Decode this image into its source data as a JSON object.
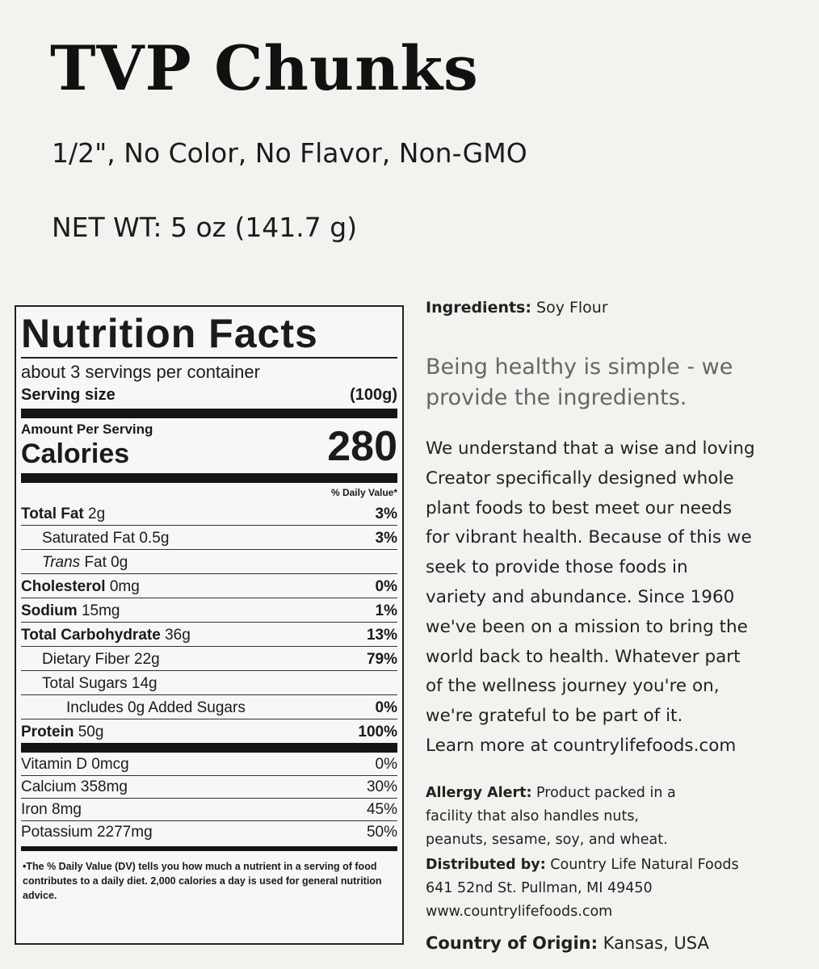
{
  "product": {
    "title": "TVP Chunks",
    "subtitle": "1/2\", No Color, No Flavor, Non-GMO",
    "net_wt": "NET WT: 5 oz (141.7 g)"
  },
  "nutrition": {
    "heading": "Nutrition Facts",
    "servings": "about 3 servings per container",
    "serving_size_label": "Serving size",
    "serving_size": "(100g)",
    "amount_per_serving": "Amount Per Serving",
    "calories_label": "Calories",
    "calories": "280",
    "dv_header": "% Daily Value*",
    "nutrients": [
      {
        "label": "Total Fat",
        "amount": "2g",
        "dv": "3%"
      },
      {
        "label": "Saturated Fat",
        "amount": "0.5g",
        "dv": "3%"
      },
      {
        "label": "Trans",
        "label2": " Fat 0g",
        "amount": "",
        "dv": ""
      },
      {
        "label": "Cholesterol",
        "amount": "0mg",
        "dv": "0%"
      },
      {
        "label": "Sodium",
        "amount": "15mg",
        "dv": "1%"
      },
      {
        "label": "Total Carbohydrate",
        "amount": "36g",
        "dv": "13%"
      },
      {
        "label": "Dietary Fiber",
        "amount": "22g",
        "dv": "79%"
      },
      {
        "label": "Total Sugars",
        "amount": "14g",
        "dv": ""
      },
      {
        "label": "Includes 0g Added Sugars",
        "amount": "",
        "dv": "0%"
      },
      {
        "label": "Protein",
        "amount": "50g",
        "dv": "100%"
      }
    ],
    "vitamins": [
      {
        "label": "Vitamin D 0mcg",
        "dv": "0%"
      },
      {
        "label": "Calcium 358mg",
        "dv": "30%"
      },
      {
        "label": "Iron 8mg",
        "dv": "45%"
      },
      {
        "label": "Potassium 2277mg",
        "dv": "50%"
      }
    ],
    "footnote": "•The % Daily Value (DV) tells you how much a nutrient in a serving of food contributes to a daily diet. 2,000 calories a day is used for general nutrition advice."
  },
  "info": {
    "ingredients_label": "Ingredients:",
    "ingredients": " Soy Flour",
    "tagline": "Being healthy is simple - we provide the ingredients.",
    "paragraph_lines": [
      "We understand that a wise and loving",
      "Creator specifically designed whole",
      "plant foods to best meet our needs",
      "for vibrant health. Because of this we",
      "seek to provide those foods in",
      "variety and abundance.  Since 1960",
      "we've been on a mission to bring the",
      "world back to health. Whatever part",
      "of the wellness journey you're on,",
      "we're grateful to be part of it.",
      "Learn more at countrylifefoods.com"
    ],
    "allergy_label": "Allergy Alert:",
    "allergy_lines": [
      " Product packed in a",
      "facility that also handles nuts,",
      "peanuts, sesame, soy, and wheat."
    ],
    "distributed_label": "Distributed by:",
    "distributed_lines": [
      " Country Life Natural Foods",
      "641 52nd St. Pullman, MI 49450",
      "www.countrylifefoods.com"
    ],
    "origin_label": "Country of Origin:",
    "origin": " Kansas, USA"
  }
}
